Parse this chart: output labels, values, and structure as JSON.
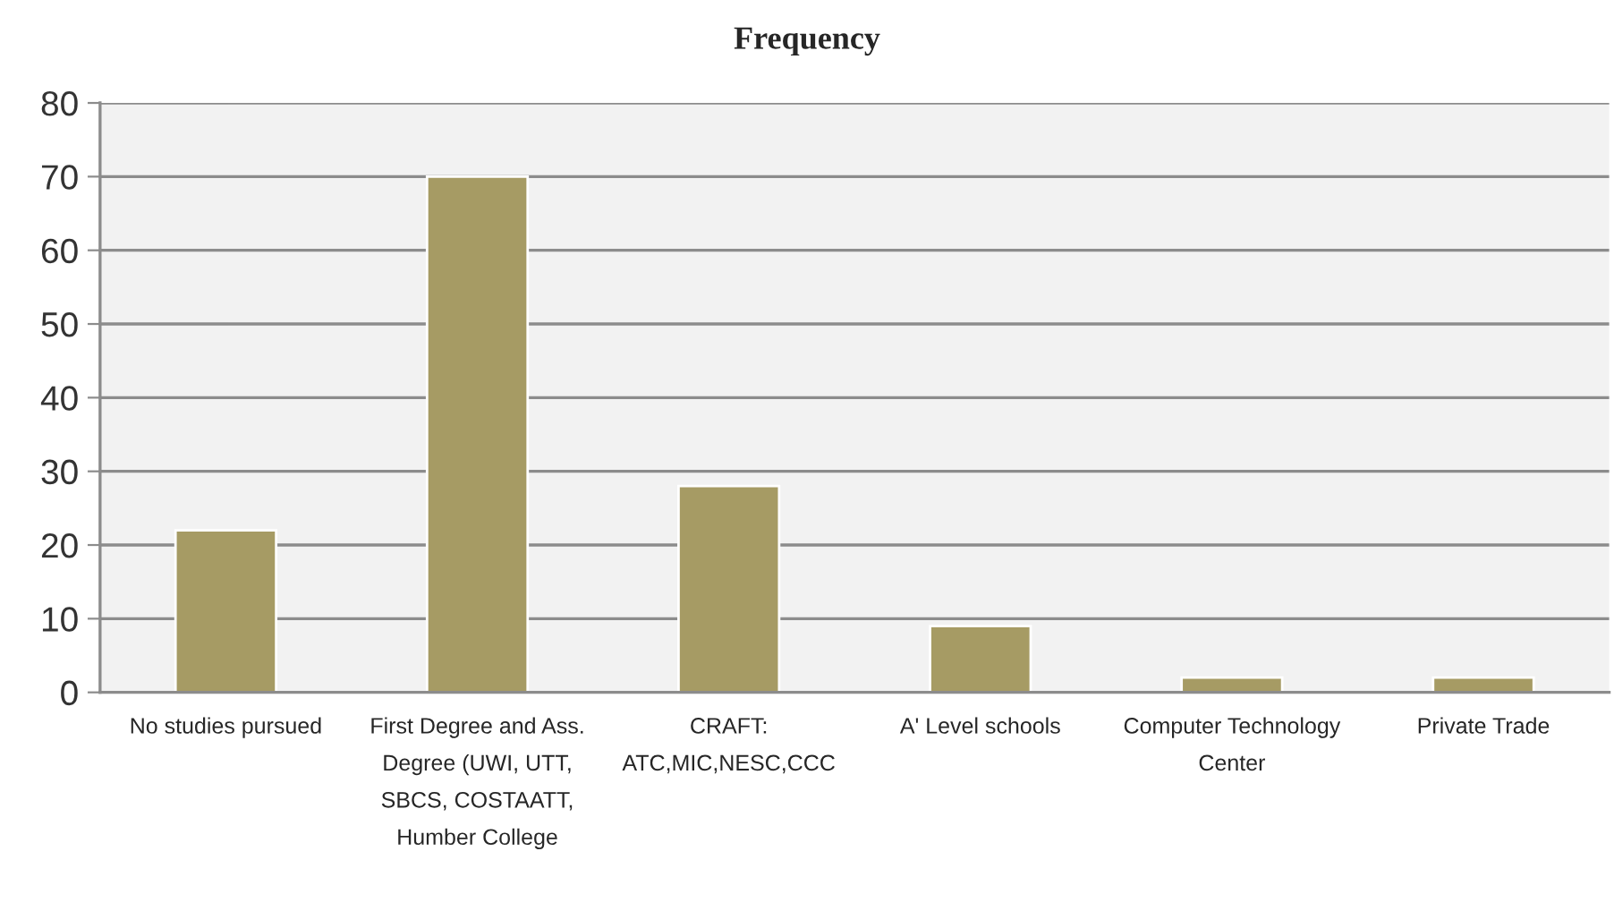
{
  "chart_data": {
    "type": "bar",
    "title": "Frequency",
    "categories": [
      "No studies pursued",
      "First Degree and Ass.\nDegree (UWI, UTT,\nSBCS, COSTAATT,\nHumber College",
      "CRAFT:\nATC,MIC,NESC,CCC",
      "A' Level schools",
      "Computer Technology\nCenter",
      "Private Trade"
    ],
    "values": [
      22,
      70,
      28,
      9,
      2,
      2
    ],
    "color": "#a69b64",
    "ylim": [
      0,
      80
    ],
    "yticks": [
      0,
      10,
      20,
      30,
      40,
      50,
      60,
      70,
      80
    ],
    "grid": "y",
    "legend": false
  }
}
